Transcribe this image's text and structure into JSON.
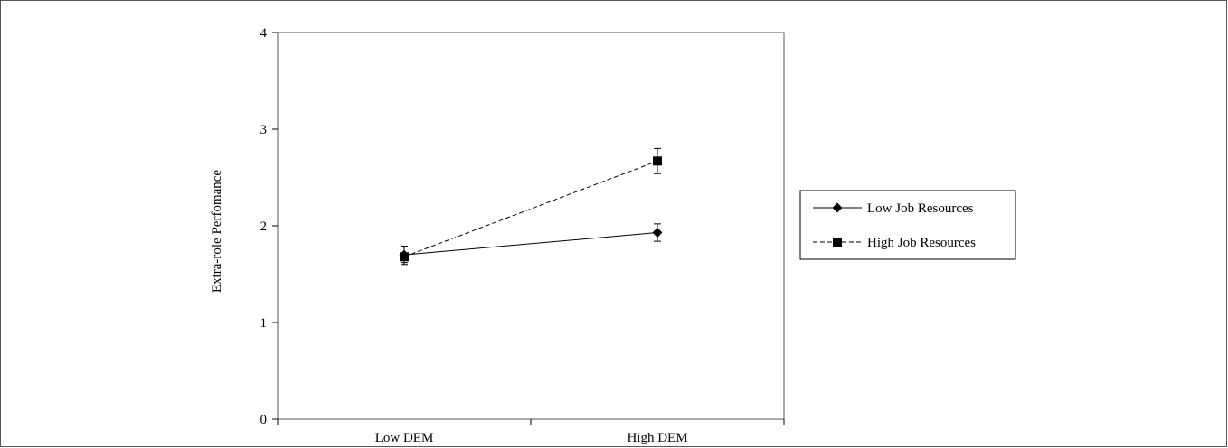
{
  "chart_data": {
    "type": "line",
    "title": "",
    "xlabel": "",
    "ylabel": "Extra-role Perfomance",
    "categories": [
      "Low DEM",
      "High DEM"
    ],
    "ylim": [
      0,
      4
    ],
    "yticks": [
      0,
      1,
      2,
      3,
      4
    ],
    "grid": false,
    "legend_position": "right",
    "series": [
      {
        "name": "Low Job Resources",
        "marker": "diamond",
        "line_style": "solid",
        "values": [
          1.7,
          1.93
        ],
        "error_low": [
          1.62,
          1.84
        ],
        "error_high": [
          1.78,
          2.02
        ]
      },
      {
        "name": "High Job Resources",
        "marker": "square",
        "line_style": "dashed",
        "values": [
          1.68,
          2.67
        ],
        "error_low": [
          1.6,
          2.54
        ],
        "error_high": [
          1.79,
          2.8
        ]
      }
    ],
    "colors": {
      "line": "#000000",
      "axis": "#000000",
      "frame": "#555555"
    }
  }
}
